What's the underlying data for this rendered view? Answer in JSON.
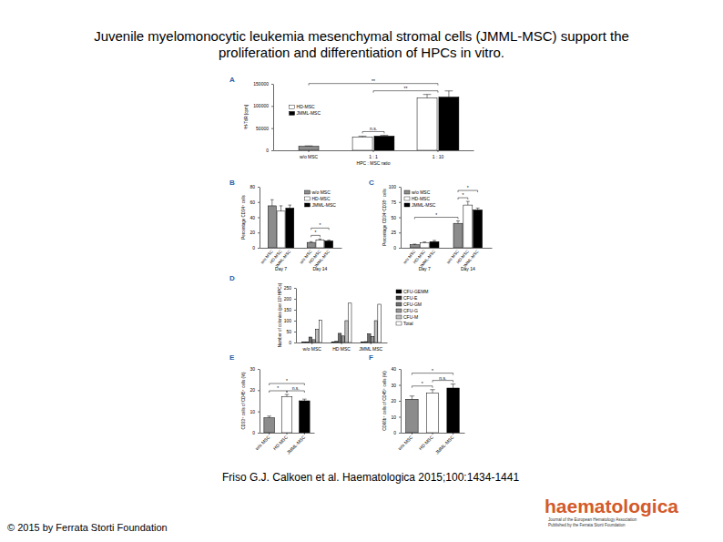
{
  "slide": {
    "title": [
      "Juvenile myelomonocytic leukemia mesenchymal stromal cells (JMML-MSC) support the",
      "proliferation and differentiation of HPCs in vitro."
    ],
    "citation": "Friso G.J. Calkoen et al. Haematologica 2015;100:1434-1441",
    "copyright": "© 2015 by Ferrata Storti Foundation",
    "logo": "haematologica",
    "logo_subtitle": [
      "Journal of the European Hematology Association",
      "Published by the Ferrata Storti Foundation"
    ]
  },
  "chart_data": [
    {
      "type": "bar",
      "title": "A",
      "y_label": "³H-TdR [cpm]",
      "x_label": "HPC : MSC ratio",
      "categories": [
        "w/o MSC",
        "1 : 1",
        "1 : 10"
      ],
      "values": [
        9000,
        null,
        null
      ],
      "errors": [
        1000,
        null,
        null
      ],
      "color": "#8c8c8c",
      "series": [
        {
          "name": "HD-MSC",
          "color": "#ffffff",
          "values": [
            null,
            30000,
            118000
          ],
          "errors": [
            null,
            2000,
            8000
          ]
        },
        {
          "name": "JMML-MSC",
          "color": "#000000",
          "values": [
            null,
            32000,
            120000
          ],
          "errors": [
            null,
            2000,
            14000
          ]
        }
      ],
      "ylim": [
        0,
        150000
      ],
      "yticks": [
        0,
        50000,
        100000,
        150000
      ],
      "legend": "left",
      "annotations": [
        {
          "text": "n.s.",
          "from": [
            1,
            0
          ],
          "to": [
            1,
            1
          ]
        },
        {
          "text": "**",
          "from": [
            1
          ],
          "to": [
            2
          ]
        },
        {
          "text": "**",
          "from": [
            0
          ],
          "to": [
            2
          ]
        }
      ]
    },
    {
      "type": "bar",
      "title": "B",
      "y_label": "Percentage CD34⁺ cells",
      "categories": [
        "Day 7",
        "Day 14"
      ],
      "series": [
        {
          "name": "w/o MSC",
          "color": "#8c8c8c",
          "values": [
            55,
            7
          ],
          "errors": [
            8,
            1
          ]
        },
        {
          "name": "HD-MSC",
          "color": "#ffffff",
          "values": [
            48,
            10
          ],
          "errors": [
            7,
            1.5
          ]
        },
        {
          "name": "JMML-MSC",
          "color": "#000000",
          "values": [
            52,
            9
          ],
          "errors": [
            4,
            1
          ]
        }
      ],
      "ylim": [
        0,
        80
      ],
      "yticks": [
        0,
        20,
        40,
        60,
        80
      ],
      "legend": "upper right",
      "annotations": [
        {
          "text": "*",
          "from": [
            1,
            0
          ],
          "to": [
            1,
            1
          ]
        },
        {
          "text": "*",
          "from": [
            1,
            0
          ],
          "to": [
            1,
            2
          ]
        }
      ]
    },
    {
      "type": "bar",
      "title": "C",
      "y_label": "Percentage CD34⁺CD38⁻ cells",
      "categories": [
        "Day 7",
        "Day 14"
      ],
      "series": [
        {
          "name": "w/o MSC",
          "color": "#8c8c8c",
          "values": [
            5,
            40
          ],
          "errors": [
            1,
            4
          ]
        },
        {
          "name": "HD-MSC",
          "color": "#ffffff",
          "values": [
            8,
            70
          ],
          "errors": [
            1.5,
            6
          ]
        },
        {
          "name": "JMML-MSC",
          "color": "#000000",
          "values": [
            10,
            62
          ],
          "errors": [
            2,
            3
          ]
        }
      ],
      "ylim": [
        0,
        100
      ],
      "yticks": [
        0,
        25,
        50,
        75,
        100
      ],
      "legend": "upper left",
      "annotations": [
        {
          "text": "*",
          "from": [
            1,
            0
          ],
          "to": [
            1,
            1
          ]
        },
        {
          "text": "*",
          "from": [
            1,
            0
          ],
          "to": [
            1,
            2
          ]
        },
        {
          "text": "*",
          "from": [
            0,
            0
          ],
          "to": [
            1,
            0
          ]
        }
      ]
    },
    {
      "type": "bar",
      "title": "D",
      "y_label": "Number of colonies (per 10³ HPCs)",
      "categories": [
        "w/o MSC",
        "HD MSC",
        "JMML MSC"
      ],
      "series": [
        {
          "name": "CFU-GEMM",
          "color": "#000000",
          "values": [
            2,
            3,
            3
          ]
        },
        {
          "name": "CFU-E",
          "color": "#3c3c3c",
          "values": [
            3,
            5,
            4
          ]
        },
        {
          "name": "CFU-GM",
          "color": "#6e6e6e",
          "values": [
            25,
            42,
            40
          ]
        },
        {
          "name": "CFU-G",
          "color": "#969696",
          "values": [
            13,
            30,
            28
          ]
        },
        {
          "name": "CFU-M",
          "color": "#bebebe",
          "values": [
            60,
            100,
            100
          ]
        },
        {
          "name": "Total",
          "color": "#ffffff",
          "values": [
            103,
            180,
            175
          ]
        }
      ],
      "ylim": [
        0,
        250
      ],
      "yticks": [
        0,
        50,
        100,
        150,
        200,
        250
      ],
      "legend": "right"
    },
    {
      "type": "bar",
      "title": "E",
      "y_label": "CD33⁺ cells of CD45⁺ cells (%)",
      "categories": [
        "w/o MSC",
        "HD-MSC",
        "JMML-MSC"
      ],
      "values": [
        7,
        17,
        15
      ],
      "errors": [
        0.8,
        1,
        0.8
      ],
      "colors": [
        "#8c8c8c",
        "#ffffff",
        "#000000"
      ],
      "ylim": [
        0,
        30
      ],
      "yticks": [
        0,
        10,
        20,
        30
      ],
      "annotations": [
        {
          "text": "*",
          "from": [
            0
          ],
          "to": [
            1
          ]
        },
        {
          "text": "n.s.",
          "from": [
            1
          ],
          "to": [
            2
          ]
        },
        {
          "text": "*",
          "from": [
            0
          ],
          "to": [
            2
          ]
        }
      ]
    },
    {
      "type": "bar",
      "title": "F",
      "y_label": "CD66b⁺ cells of CD45⁺ cells (%)",
      "categories": [
        "w/o MSC",
        "HD-MSC",
        "JMML-MSC"
      ],
      "values": [
        21,
        25,
        28
      ],
      "errors": [
        2,
        2,
        2.5
      ],
      "colors": [
        "#8c8c8c",
        "#ffffff",
        "#000000"
      ],
      "ylim": [
        0,
        40
      ],
      "yticks": [
        0,
        10,
        20,
        30,
        40
      ],
      "annotations": [
        {
          "text": "*",
          "from": [
            0
          ],
          "to": [
            1
          ]
        },
        {
          "text": "n.s.",
          "from": [
            1
          ],
          "to": [
            2
          ]
        },
        {
          "text": "*",
          "from": [
            0
          ],
          "to": [
            2
          ]
        }
      ]
    }
  ]
}
